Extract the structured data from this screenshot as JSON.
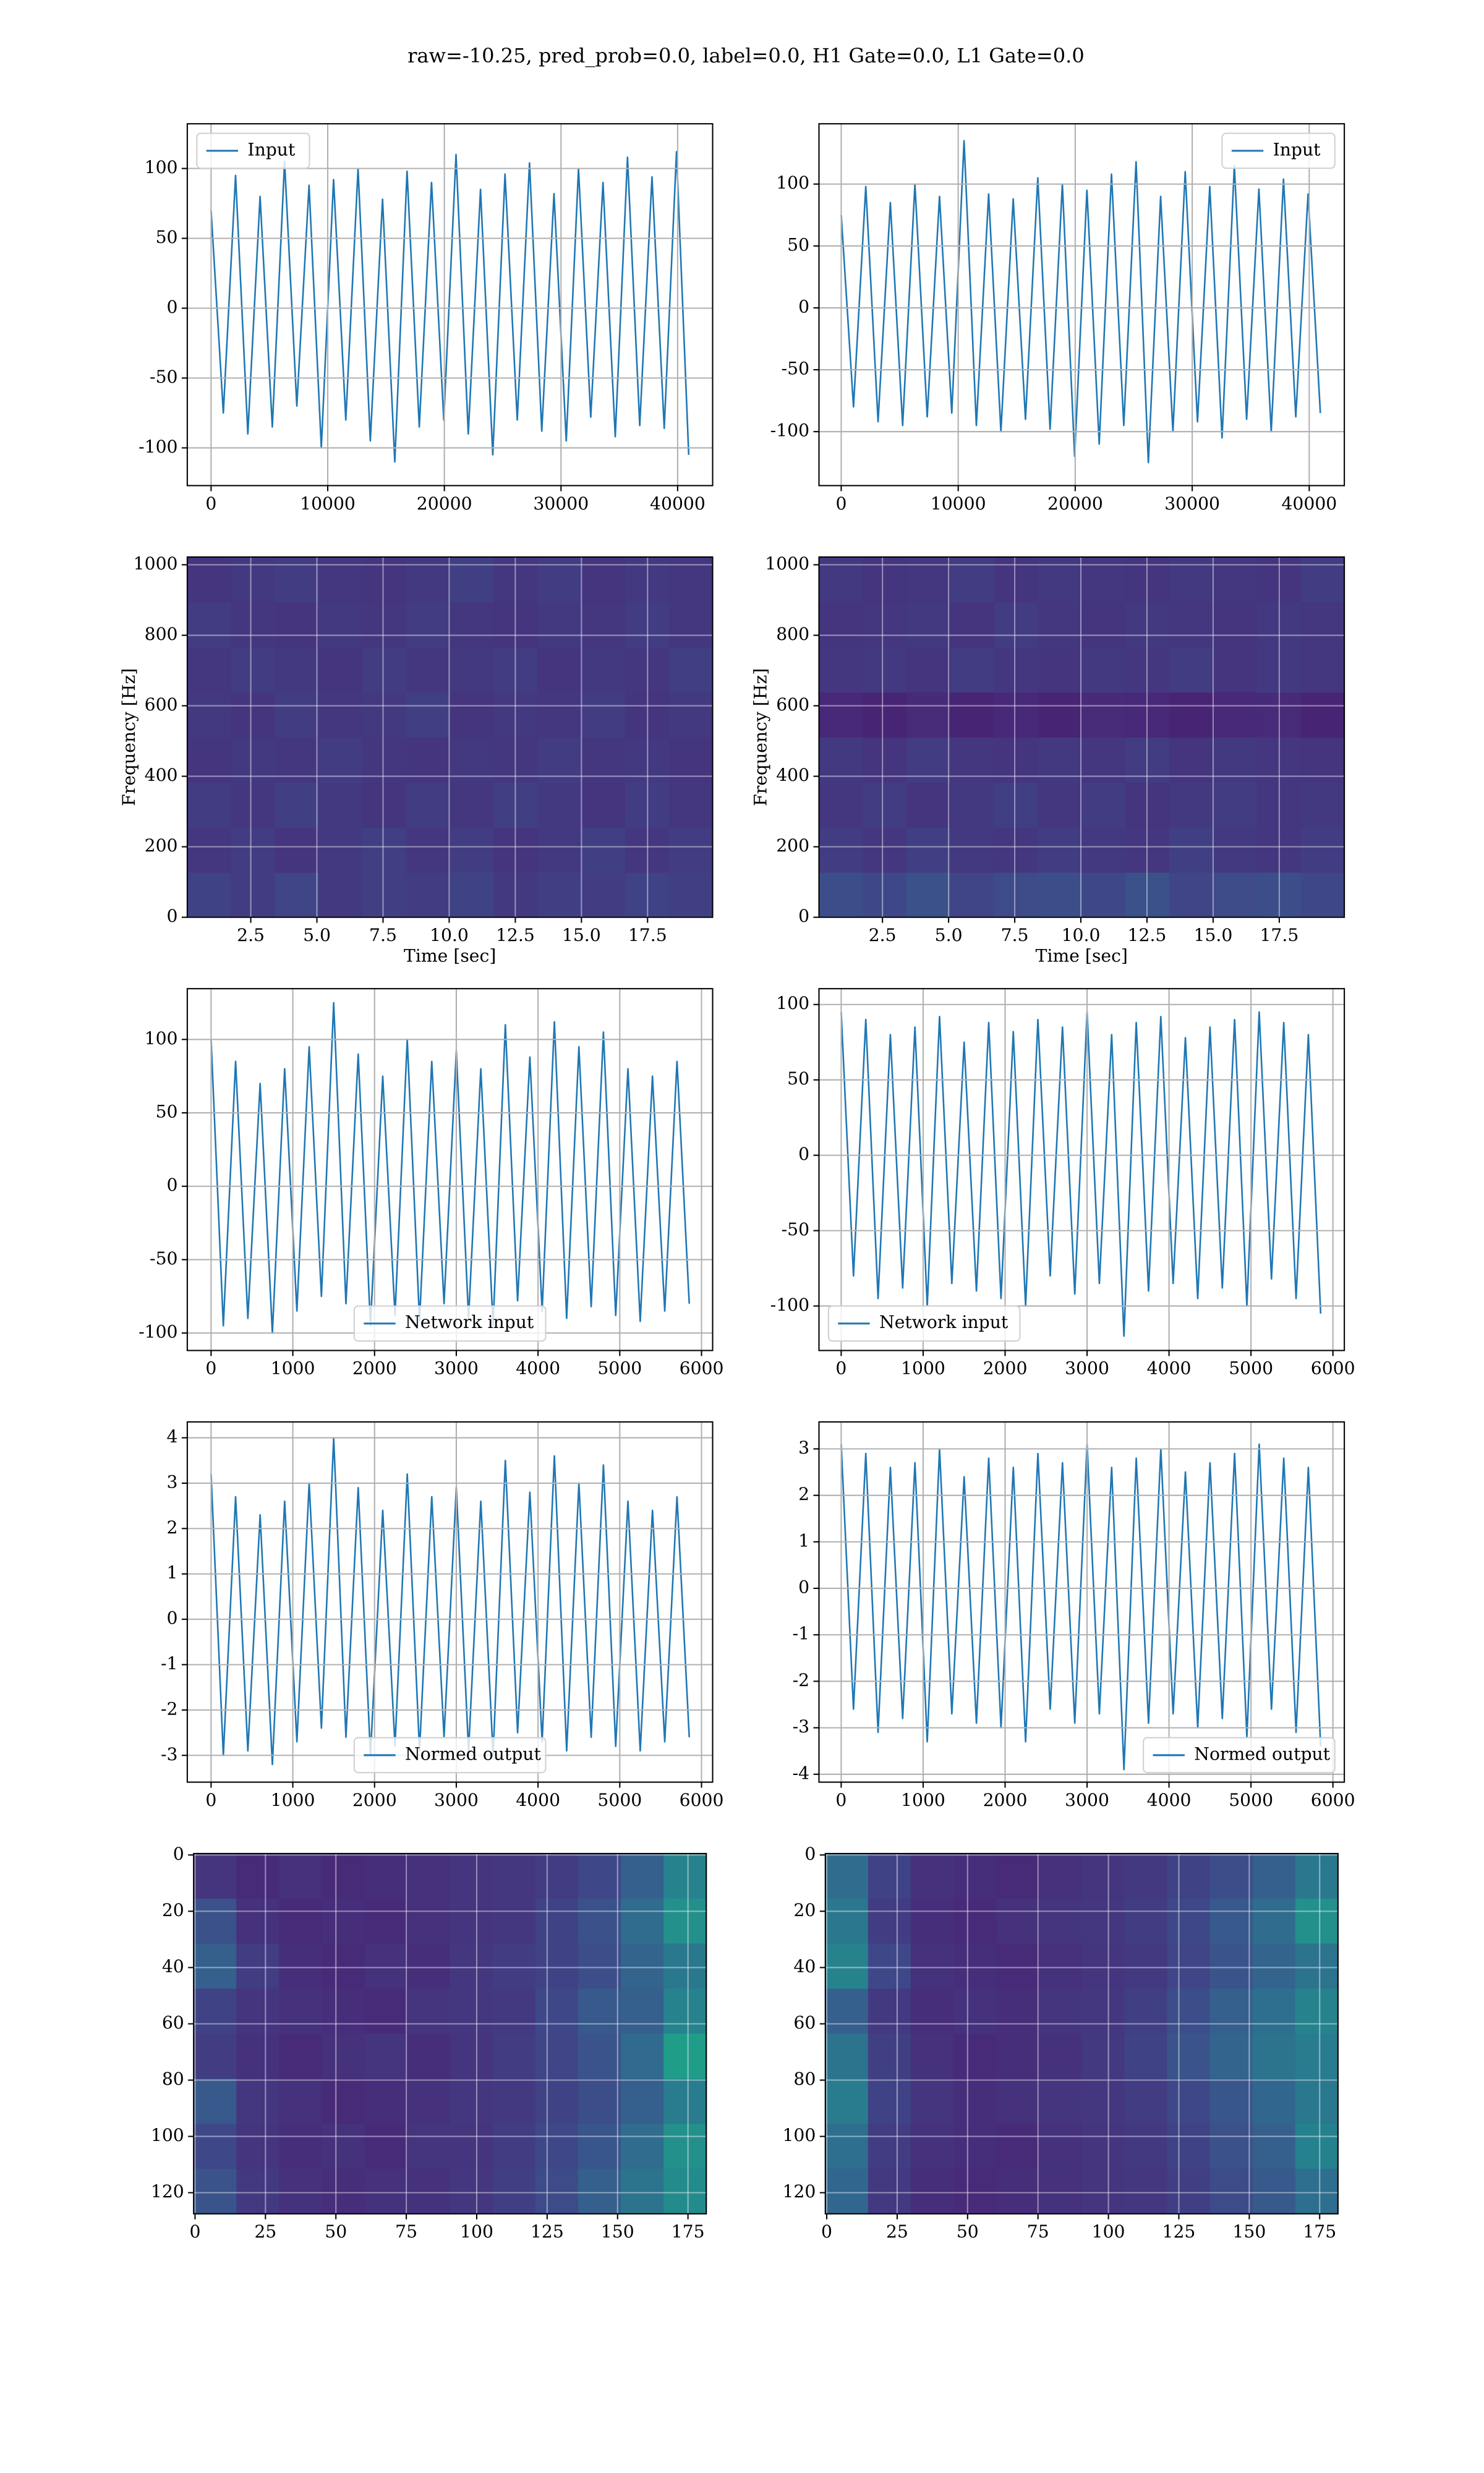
{
  "title": "raw=-10.25, pred_prob=0.0, label=0.0, H1 Gate=0.0, L1 Gate=0.0",
  "chart_data": [
    {
      "type": "line",
      "grid": true,
      "legend": "upper left",
      "xlim": [
        -2040,
        43000
      ],
      "ylim": [
        -127,
        132
      ],
      "xticks": [
        0,
        10000,
        20000,
        30000,
        40000
      ],
      "yticks": [
        -100,
        -50,
        0,
        50,
        100
      ],
      "x": [
        0,
        1050,
        2100,
        3150,
        4200,
        5250,
        6300,
        7350,
        8400,
        9450,
        10500,
        11550,
        12600,
        13650,
        14700,
        15750,
        16800,
        17850,
        18900,
        19950,
        21000,
        22050,
        23100,
        24150,
        25200,
        26250,
        27300,
        28350,
        29400,
        30450,
        31500,
        32550,
        33600,
        34650,
        35700,
        36750,
        37800,
        38850,
        39900,
        40950
      ],
      "series": [
        {
          "name": "Input",
          "color": "#1f77b4",
          "values": [
            70,
            -75,
            95,
            -90,
            80,
            -85,
            105,
            -70,
            88,
            -100,
            92,
            -80,
            100,
            -95,
            78,
            -110,
            98,
            -85,
            90,
            -80,
            110,
            -90,
            85,
            -105,
            96,
            -80,
            104,
            -88,
            82,
            -95,
            100,
            -78,
            90,
            -92,
            108,
            -84,
            94,
            -86,
            112,
            -105
          ]
        }
      ]
    },
    {
      "type": "line",
      "grid": true,
      "legend": "upper right",
      "xlim": [
        -1900,
        43000
      ],
      "ylim": [
        -143.6,
        148.7
      ],
      "xticks": [
        0,
        10000,
        20000,
        30000,
        40000
      ],
      "yticks": [
        -100,
        -50,
        0,
        50,
        100
      ],
      "x": [
        0,
        1050,
        2100,
        3150,
        4200,
        5250,
        6300,
        7350,
        8400,
        9450,
        10500,
        11550,
        12600,
        13650,
        14700,
        15750,
        16800,
        17850,
        18900,
        19950,
        21000,
        22050,
        23100,
        24150,
        25200,
        26250,
        27300,
        28350,
        29400,
        30450,
        31500,
        32550,
        33600,
        34650,
        35700,
        36750,
        37800,
        38850,
        39900,
        40950
      ],
      "series": [
        {
          "name": "Input",
          "color": "#1f77b4",
          "values": [
            75,
            -80,
            98,
            -92,
            85,
            -95,
            100,
            -88,
            90,
            -85,
            135,
            -95,
            92,
            -100,
            88,
            -90,
            105,
            -98,
            100,
            -120,
            95,
            -110,
            108,
            -95,
            118,
            -125,
            90,
            -100,
            110,
            -92,
            98,
            -105,
            115,
            -90,
            96,
            -100,
            104,
            -88,
            92,
            -85
          ]
        }
      ]
    },
    {
      "type": "heatmap",
      "grid": true,
      "colormap": "viridis",
      "xlabel": "Time [sec]",
      "ylabel": "Frequency [Hz]",
      "xlim": [
        0.1,
        19.96
      ],
      "ylim": [
        0,
        1022
      ],
      "xticks": [
        2.5,
        {
          "value": 5,
          "label": "5.0"
        },
        7.5,
        {
          "value": 10,
          "label": "10.0"
        },
        12.5,
        {
          "value": 15,
          "label": "15.0"
        },
        17.5
      ],
      "yticks": [
        0,
        200,
        400,
        600,
        800,
        1000
      ],
      "z": [
        [
          0.2,
          0.18,
          0.21,
          0.17,
          0.19,
          0.18,
          0.2,
          0.17,
          0.19,
          0.18,
          0.2,
          0.19
        ],
        [
          0.16,
          0.18,
          0.15,
          0.17,
          0.19,
          0.16,
          0.18,
          0.15,
          0.17,
          0.19,
          0.16,
          0.18
        ],
        [
          0.18,
          0.16,
          0.19,
          0.17,
          0.15,
          0.18,
          0.16,
          0.19,
          0.17,
          0.15,
          0.18,
          0.16
        ],
        [
          0.15,
          0.17,
          0.16,
          0.18,
          0.16,
          0.15,
          0.17,
          0.16,
          0.18,
          0.16,
          0.17,
          0.15
        ],
        [
          0.17,
          0.15,
          0.18,
          0.16,
          0.17,
          0.19,
          0.15,
          0.17,
          0.16,
          0.18,
          0.15,
          0.17
        ],
        [
          0.16,
          0.18,
          0.17,
          0.15,
          0.18,
          0.16,
          0.17,
          0.18,
          0.15,
          0.17,
          0.16,
          0.19
        ],
        [
          0.18,
          0.16,
          0.15,
          0.17,
          0.16,
          0.18,
          0.16,
          0.15,
          0.17,
          0.16,
          0.18,
          0.16
        ],
        [
          0.15,
          0.17,
          0.18,
          0.16,
          0.15,
          0.17,
          0.19,
          0.16,
          0.18,
          0.15,
          0.17,
          0.16
        ]
      ]
    },
    {
      "type": "heatmap",
      "grid": true,
      "colormap": "viridis",
      "xlabel": "Time [sec]",
      "ylabel": "Frequency [Hz]",
      "xlim": [
        0.1,
        19.96
      ],
      "ylim": [
        0,
        1022
      ],
      "xticks": [
        2.5,
        {
          "value": 5,
          "label": "5.0"
        },
        7.5,
        {
          "value": 10,
          "label": "10.0"
        },
        12.5,
        {
          "value": 15,
          "label": "15.0"
        },
        17.5
      ],
      "yticks": [
        0,
        200,
        400,
        600,
        800,
        1000
      ],
      "z": [
        [
          0.24,
          0.22,
          0.25,
          0.21,
          0.23,
          0.24,
          0.22,
          0.25,
          0.21,
          0.23,
          0.24,
          0.22
        ],
        [
          0.18,
          0.16,
          0.19,
          0.17,
          0.16,
          0.18,
          0.17,
          0.16,
          0.19,
          0.17,
          0.16,
          0.18
        ],
        [
          0.16,
          0.18,
          0.15,
          0.17,
          0.19,
          0.16,
          0.18,
          0.15,
          0.17,
          0.18,
          0.16,
          0.17
        ],
        [
          0.17,
          0.15,
          0.18,
          0.16,
          0.15,
          0.17,
          0.16,
          0.18,
          0.15,
          0.17,
          0.16,
          0.15
        ],
        [
          0.11,
          0.1,
          0.12,
          0.1,
          0.11,
          0.1,
          0.12,
          0.11,
          0.1,
          0.11,
          0.12,
          0.1
        ],
        [
          0.16,
          0.17,
          0.15,
          0.18,
          0.16,
          0.15,
          0.17,
          0.16,
          0.18,
          0.15,
          0.17,
          0.16
        ],
        [
          0.15,
          0.16,
          0.17,
          0.15,
          0.18,
          0.16,
          0.15,
          0.17,
          0.16,
          0.15,
          0.17,
          0.16
        ],
        [
          0.17,
          0.15,
          0.16,
          0.18,
          0.15,
          0.17,
          0.16,
          0.15,
          0.17,
          0.16,
          0.15,
          0.18
        ]
      ]
    },
    {
      "type": "line",
      "grid": true,
      "legend": "lower center",
      "xlim": [
        -291,
        6136
      ],
      "ylim": [
        -111.9,
        134.6
      ],
      "xticks": [
        0,
        1000,
        2000,
        3000,
        4000,
        5000,
        6000
      ],
      "yticks": [
        -100,
        -50,
        0,
        50,
        100
      ],
      "x": [
        0,
        150,
        300,
        450,
        600,
        750,
        900,
        1050,
        1200,
        1350,
        1500,
        1650,
        1800,
        1950,
        2100,
        2250,
        2400,
        2550,
        2700,
        2850,
        3000,
        3150,
        3300,
        3450,
        3600,
        3750,
        3900,
        4050,
        4200,
        4350,
        4500,
        4650,
        4800,
        4950,
        5100,
        5250,
        5400,
        5550,
        5700,
        5850
      ],
      "series": [
        {
          "name": "Network input",
          "color": "#1f77b4",
          "values": [
            100,
            -95,
            85,
            -90,
            70,
            -100,
            80,
            -85,
            95,
            -75,
            125,
            -80,
            90,
            -95,
            75,
            -88,
            100,
            -92,
            85,
            -80,
            92,
            -90,
            80,
            -95,
            110,
            -78,
            88,
            -85,
            112,
            -90,
            95,
            -82,
            105,
            -88,
            80,
            -92,
            75,
            -85,
            85,
            -80
          ]
        }
      ]
    },
    {
      "type": "line",
      "grid": true,
      "legend": "lower left",
      "xlim": [
        -271,
        6139
      ],
      "ylim": [
        -129.5,
        110.5
      ],
      "xticks": [
        0,
        1000,
        2000,
        3000,
        4000,
        5000,
        6000
      ],
      "yticks": [
        -100,
        -50,
        0,
        50,
        100
      ],
      "x": [
        0,
        150,
        300,
        450,
        600,
        750,
        900,
        1050,
        1200,
        1350,
        1500,
        1650,
        1800,
        1950,
        2100,
        2250,
        2400,
        2550,
        2700,
        2850,
        3000,
        3150,
        3300,
        3450,
        3600,
        3750,
        3900,
        4050,
        4200,
        4350,
        4500,
        4650,
        4800,
        4950,
        5100,
        5250,
        5400,
        5550,
        5700,
        5850
      ],
      "series": [
        {
          "name": "Network input",
          "color": "#1f77b4",
          "values": [
            95,
            -80,
            90,
            -95,
            80,
            -88,
            85,
            -100,
            92,
            -85,
            75,
            -90,
            88,
            -95,
            82,
            -100,
            90,
            -80,
            85,
            -92,
            95,
            -85,
            80,
            -120,
            88,
            -90,
            92,
            -85,
            78,
            -95,
            85,
            -88,
            90,
            -100,
            95,
            -82,
            88,
            -95,
            80,
            -105
          ]
        }
      ]
    },
    {
      "type": "line",
      "grid": true,
      "legend": "lower center",
      "xlim": [
        -291,
        6136
      ],
      "ylim": [
        -3.59,
        4.35
      ],
      "xticks": [
        0,
        1000,
        2000,
        3000,
        4000,
        5000,
        6000
      ],
      "yticks": [
        -3,
        -2,
        -1,
        0,
        1,
        2,
        3,
        4
      ],
      "x": [
        0,
        150,
        300,
        450,
        600,
        750,
        900,
        1050,
        1200,
        1350,
        1500,
        1650,
        1800,
        1950,
        2100,
        2250,
        2400,
        2550,
        2700,
        2850,
        3000,
        3150,
        3300,
        3450,
        3600,
        3750,
        3900,
        4050,
        4200,
        4350,
        4500,
        4650,
        4800,
        4950,
        5100,
        5250,
        5400,
        5550,
        5700,
        5850
      ],
      "series": [
        {
          "name": "Normed output",
          "color": "#1f77b4",
          "values": [
            3.2,
            -3.0,
            2.7,
            -2.9,
            2.3,
            -3.2,
            2.6,
            -2.7,
            3.0,
            -2.4,
            4.0,
            -2.6,
            2.9,
            -3.0,
            2.4,
            -2.8,
            3.2,
            -2.9,
            2.7,
            -2.6,
            2.9,
            -2.9,
            2.6,
            -3.0,
            3.5,
            -2.5,
            2.8,
            -2.7,
            3.6,
            -2.9,
            3.0,
            -2.6,
            3.4,
            -2.8,
            2.6,
            -2.9,
            2.4,
            -2.7,
            2.7,
            -2.6
          ]
        }
      ]
    },
    {
      "type": "line",
      "grid": true,
      "legend": "lower right",
      "xlim": [
        -271,
        6139
      ],
      "ylim": [
        -4.17,
        3.58
      ],
      "xticks": [
        0,
        1000,
        2000,
        3000,
        4000,
        5000,
        6000
      ],
      "yticks": [
        -4,
        -3,
        -2,
        -1,
        0,
        1,
        2,
        3
      ],
      "x": [
        0,
        150,
        300,
        450,
        600,
        750,
        900,
        1050,
        1200,
        1350,
        1500,
        1650,
        1800,
        1950,
        2100,
        2250,
        2400,
        2550,
        2700,
        2850,
        3000,
        3150,
        3300,
        3450,
        3600,
        3750,
        3900,
        4050,
        4200,
        4350,
        4500,
        4650,
        4800,
        4950,
        5100,
        5250,
        5400,
        5550,
        5700,
        5850
      ],
      "series": [
        {
          "name": "Normed output",
          "color": "#1f77b4",
          "values": [
            3.1,
            -2.6,
            2.9,
            -3.1,
            2.6,
            -2.8,
            2.7,
            -3.3,
            3.0,
            -2.7,
            2.4,
            -2.9,
            2.8,
            -3.0,
            2.6,
            -3.3,
            2.9,
            -2.6,
            2.7,
            -2.9,
            3.1,
            -2.7,
            2.6,
            -3.9,
            2.8,
            -2.9,
            3.0,
            -2.7,
            2.5,
            -3.0,
            2.7,
            -2.8,
            2.9,
            -3.2,
            3.1,
            -2.6,
            2.8,
            -3.1,
            2.6,
            -3.4
          ]
        }
      ]
    },
    {
      "type": "heatmap",
      "grid": true,
      "colormap": "viridis",
      "invert_y": true,
      "xlim": [
        -0.5,
        181.5
      ],
      "ylim": [
        -0.5,
        127.5
      ],
      "xticks": [
        0,
        25,
        50,
        75,
        100,
        125,
        150,
        175
      ],
      "yticks": [
        0,
        20,
        40,
        60,
        80,
        100,
        120
      ],
      "z": [
        [
          0.15,
          0.12,
          0.14,
          0.12,
          0.13,
          0.14,
          0.15,
          0.16,
          0.18,
          0.22,
          0.3,
          0.45
        ],
        [
          0.25,
          0.14,
          0.12,
          0.13,
          0.12,
          0.14,
          0.15,
          0.16,
          0.2,
          0.25,
          0.35,
          0.5
        ],
        [
          0.3,
          0.18,
          0.13,
          0.12,
          0.14,
          0.13,
          0.16,
          0.18,
          0.2,
          0.24,
          0.32,
          0.4
        ],
        [
          0.2,
          0.15,
          0.14,
          0.13,
          0.12,
          0.15,
          0.16,
          0.17,
          0.22,
          0.28,
          0.3,
          0.45
        ],
        [
          0.18,
          0.14,
          0.12,
          0.14,
          0.15,
          0.13,
          0.15,
          0.18,
          0.21,
          0.26,
          0.34,
          0.55
        ],
        [
          0.28,
          0.16,
          0.14,
          0.12,
          0.13,
          0.14,
          0.16,
          0.17,
          0.2,
          0.24,
          0.3,
          0.42
        ],
        [
          0.22,
          0.15,
          0.13,
          0.14,
          0.12,
          0.15,
          0.15,
          0.18,
          0.22,
          0.27,
          0.35,
          0.5
        ],
        [
          0.26,
          0.17,
          0.14,
          0.13,
          0.14,
          0.14,
          0.16,
          0.19,
          0.23,
          0.3,
          0.38,
          0.48
        ]
      ]
    },
    {
      "type": "heatmap",
      "grid": true,
      "colormap": "viridis",
      "invert_y": true,
      "xlim": [
        -0.5,
        181.5
      ],
      "ylim": [
        -0.5,
        127.5
      ],
      "xticks": [
        0,
        25,
        50,
        75,
        100,
        125,
        150,
        175
      ],
      "yticks": [
        0,
        20,
        40,
        60,
        80,
        100,
        120
      ],
      "z": [
        [
          0.35,
          0.2,
          0.14,
          0.13,
          0.12,
          0.14,
          0.15,
          0.17,
          0.2,
          0.24,
          0.3,
          0.4
        ],
        [
          0.4,
          0.18,
          0.13,
          0.12,
          0.14,
          0.15,
          0.16,
          0.18,
          0.22,
          0.28,
          0.35,
          0.5
        ],
        [
          0.45,
          0.22,
          0.14,
          0.13,
          0.12,
          0.14,
          0.15,
          0.17,
          0.21,
          0.26,
          0.32,
          0.38
        ],
        [
          0.3,
          0.17,
          0.13,
          0.14,
          0.13,
          0.15,
          0.16,
          0.19,
          0.24,
          0.3,
          0.36,
          0.45
        ],
        [
          0.38,
          0.19,
          0.14,
          0.12,
          0.13,
          0.14,
          0.17,
          0.2,
          0.26,
          0.32,
          0.38,
          0.42
        ],
        [
          0.42,
          0.2,
          0.15,
          0.13,
          0.14,
          0.15,
          0.16,
          0.18,
          0.22,
          0.27,
          0.33,
          0.4
        ],
        [
          0.36,
          0.18,
          0.14,
          0.13,
          0.12,
          0.14,
          0.15,
          0.17,
          0.2,
          0.25,
          0.3,
          0.44
        ],
        [
          0.33,
          0.17,
          0.13,
          0.12,
          0.13,
          0.14,
          0.15,
          0.16,
          0.19,
          0.23,
          0.28,
          0.36
        ]
      ]
    }
  ]
}
